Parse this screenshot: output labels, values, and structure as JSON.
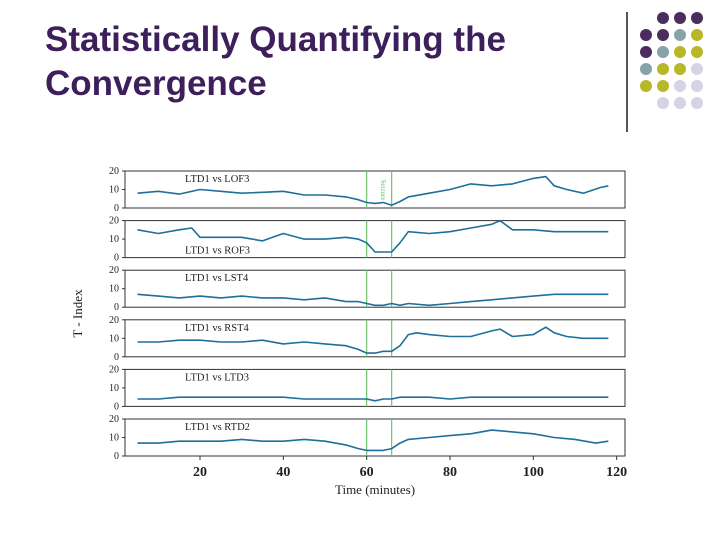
{
  "slide": {
    "title_line1": "Statistically Quantifying the",
    "title_line2": "Convergence"
  },
  "decoration": {
    "dot_colors": {
      "purple": "#4a2c5e",
      "teal": "#86a3a7",
      "olive": "#b7b829",
      "lavender": "#d6d3e3"
    },
    "grid": [
      [
        "",
        "purple",
        "purple",
        "purple"
      ],
      [
        "purple",
        "purple",
        "teal",
        "olive"
      ],
      [
        "purple",
        "teal",
        "olive",
        "olive"
      ],
      [
        "teal",
        "olive",
        "olive",
        "lavender"
      ],
      [
        "olive",
        "olive",
        "lavender",
        "lavender"
      ],
      [
        "",
        "lavender",
        "lavender",
        "lavender"
      ]
    ]
  },
  "chart_data": {
    "type": "line",
    "line_color": "#1f6f9a",
    "marker_color": "#6cc46c",
    "xlabel": "Time (minutes)",
    "ylabel": "T - Index",
    "xlim": [
      2,
      122
    ],
    "ylim": [
      0,
      20
    ],
    "x_ticks": [
      20,
      40,
      60,
      80,
      100,
      120
    ],
    "y_ticks": [
      0,
      10,
      20
    ],
    "event_lines": [
      60,
      66
    ],
    "event_label": "Seizure",
    "panels": [
      {
        "label": "LTD1 vs LOF3",
        "x": [
          5,
          10,
          15,
          20,
          25,
          30,
          35,
          40,
          45,
          50,
          55,
          58,
          60,
          62,
          64,
          66,
          68,
          70,
          75,
          80,
          85,
          90,
          95,
          100,
          103,
          105,
          108,
          112,
          116,
          118
        ],
        "y": [
          8,
          9,
          7.5,
          10,
          9,
          8,
          8.5,
          9,
          7,
          7,
          6,
          4.5,
          3,
          2.5,
          3,
          1.5,
          3.5,
          6,
          8,
          10,
          13,
          12,
          13,
          16,
          17,
          12,
          10,
          8,
          11,
          12
        ]
      },
      {
        "label": "LTD1 vs ROF3",
        "x": [
          5,
          10,
          15,
          18,
          20,
          25,
          30,
          35,
          40,
          45,
          50,
          55,
          58,
          60,
          62,
          64,
          66,
          68,
          70,
          75,
          80,
          85,
          90,
          92,
          95,
          100,
          105,
          110,
          115,
          118
        ],
        "y": [
          15,
          13,
          15,
          16,
          11,
          11,
          11,
          9,
          13,
          10,
          10,
          11,
          10,
          8,
          3,
          3,
          3,
          8,
          14,
          13,
          14,
          16,
          18,
          20,
          15,
          15,
          14,
          14,
          14,
          14
        ]
      },
      {
        "label": "LTD1 vs LST4",
        "x": [
          5,
          10,
          15,
          20,
          25,
          30,
          35,
          40,
          45,
          50,
          55,
          58,
          60,
          62,
          64,
          66,
          68,
          70,
          75,
          80,
          85,
          90,
          95,
          100,
          105,
          110,
          115,
          118
        ],
        "y": [
          7,
          6,
          5,
          6,
          5,
          6,
          5,
          5,
          4,
          5,
          3,
          3,
          2,
          1,
          1,
          2,
          1,
          2,
          1,
          2,
          3,
          4,
          5,
          6,
          7,
          7,
          7,
          7
        ]
      },
      {
        "label": "LTD1 vs RST4",
        "x": [
          5,
          10,
          15,
          20,
          25,
          30,
          35,
          40,
          45,
          50,
          55,
          58,
          60,
          62,
          64,
          66,
          68,
          70,
          72,
          75,
          80,
          85,
          90,
          92,
          95,
          100,
          103,
          105,
          108,
          112,
          118
        ],
        "y": [
          8,
          8,
          9,
          9,
          8,
          8,
          9,
          7,
          8,
          7,
          6,
          4,
          2,
          2,
          3,
          3,
          6,
          12,
          13,
          12,
          11,
          11,
          14,
          15,
          11,
          12,
          16,
          13,
          11,
          10,
          10
        ]
      },
      {
        "label": "LTD1 vs LTD3",
        "x": [
          5,
          10,
          15,
          20,
          25,
          30,
          35,
          40,
          45,
          50,
          55,
          60,
          62,
          64,
          66,
          68,
          70,
          75,
          80,
          85,
          90,
          95,
          100,
          105,
          110,
          115,
          118
        ],
        "y": [
          4,
          4,
          5,
          5,
          5,
          5,
          5,
          5,
          4,
          4,
          4,
          4,
          3,
          4,
          4,
          5,
          5,
          5,
          4,
          5,
          5,
          5,
          5,
          5,
          5,
          5,
          5
        ]
      },
      {
        "label": "LTD1 vs RTD2",
        "x": [
          5,
          10,
          15,
          20,
          25,
          30,
          35,
          40,
          45,
          50,
          55,
          58,
          60,
          62,
          64,
          66,
          68,
          70,
          75,
          80,
          85,
          90,
          95,
          100,
          105,
          110,
          115,
          118
        ],
        "y": [
          7,
          7,
          8,
          8,
          8,
          9,
          8,
          8,
          9,
          8,
          6,
          4,
          3,
          3,
          3,
          4,
          7,
          9,
          10,
          11,
          12,
          14,
          13,
          12,
          10,
          9,
          7,
          8
        ]
      }
    ]
  }
}
